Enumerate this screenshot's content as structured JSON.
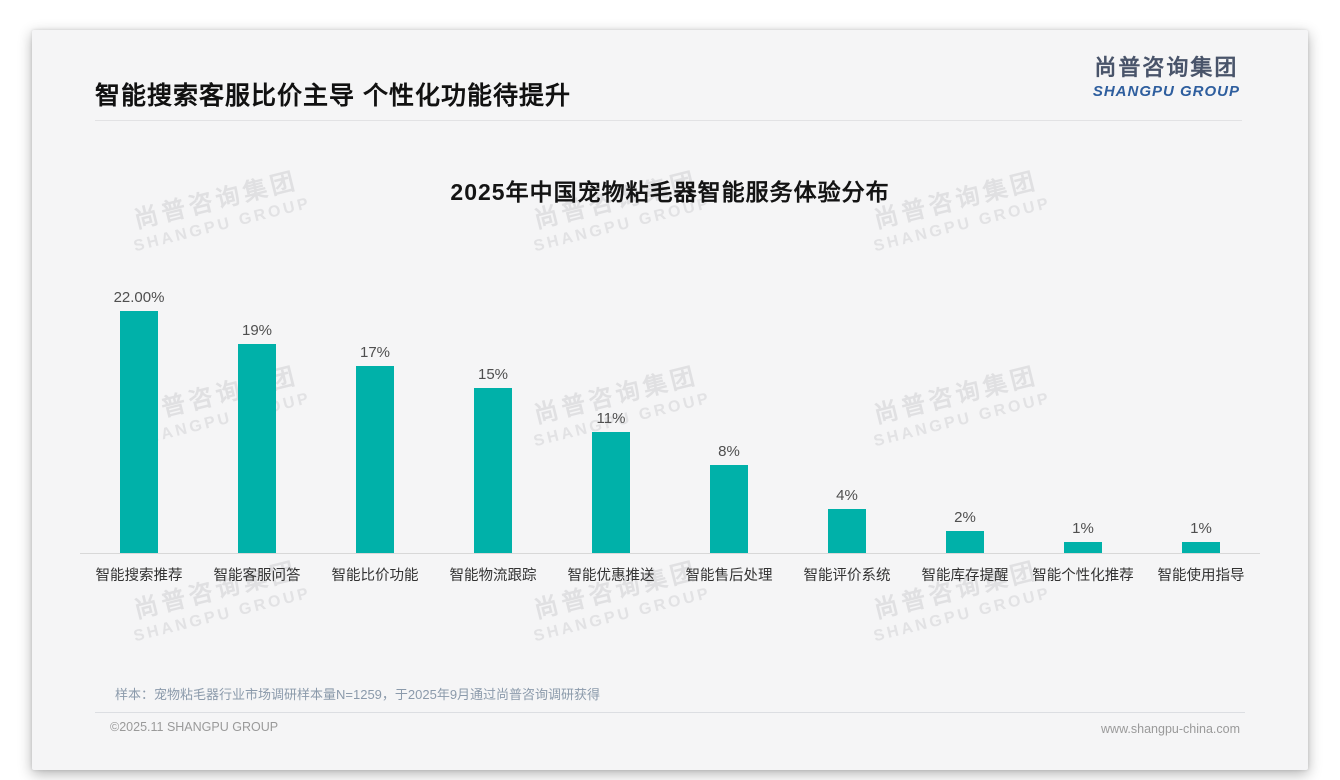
{
  "page": {
    "title": "智能搜索客服比价主导 个性化功能待提升",
    "logo": {
      "cn": "尚普咨询集团",
      "en": "SHANGPU GROUP"
    },
    "watermark": {
      "cn": "尚普咨询集团",
      "en": "SHANGPU GROUP"
    },
    "footer_note": "样本：宠物粘毛器行业市场调研样本量N=1259，于2025年9月通过尚普咨询调研获得",
    "footer_copyright": "©2025.11 SHANGPU GROUP",
    "footer_url": "www.shangpu-china.com"
  },
  "colors": {
    "bar": "#00b1a9",
    "logo_blue": "#2e5e9e",
    "slide_bg": "#f5f5f6"
  },
  "chart_data": {
    "type": "bar",
    "title": "2025年中国宠物粘毛器智能服务体验分布",
    "categories": [
      "智能搜索推荐",
      "智能客服问答",
      "智能比价功能",
      "智能物流跟踪",
      "智能优惠推送",
      "智能售后处理",
      "智能评价系统",
      "智能库存提醒",
      "智能个性化推荐",
      "智能使用指导"
    ],
    "values": [
      22,
      19,
      17,
      15,
      11,
      8,
      4,
      2,
      1,
      1
    ],
    "value_labels": [
      "22.00%",
      "19%",
      "17%",
      "15%",
      "11%",
      "8%",
      "4%",
      "2%",
      "1%",
      "1%"
    ],
    "xlabel": "",
    "ylabel": "",
    "ylim": [
      0,
      24
    ],
    "grid": false,
    "legend": "none",
    "bar_color": "#00b1a9"
  }
}
